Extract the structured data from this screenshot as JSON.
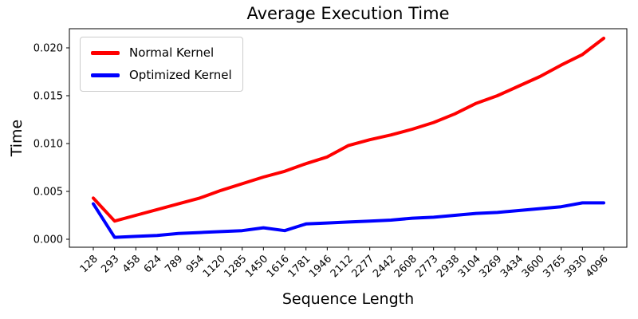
{
  "chart_data": {
    "type": "line",
    "title": "Average Execution Time",
    "xlabel": "Sequence Length",
    "ylabel": "Time",
    "legend_position": "upper left",
    "grid": false,
    "ylim": [
      -0.0009,
      0.0222
    ],
    "yticks": [
      {
        "label": "0.000",
        "value": 0.0
      },
      {
        "label": "0.005",
        "value": 0.005
      },
      {
        "label": "0.010",
        "value": 0.01
      },
      {
        "label": "0.015",
        "value": 0.015
      },
      {
        "label": "0.020",
        "value": 0.02
      }
    ],
    "categories": [
      "128",
      "293",
      "458",
      "624",
      "789",
      "954",
      "1120",
      "1285",
      "1450",
      "1616",
      "1781",
      "1946",
      "2112",
      "2277",
      "2442",
      "2608",
      "2773",
      "2938",
      "3104",
      "3269",
      "3434",
      "3600",
      "3765",
      "3930",
      "4096"
    ],
    "series": [
      {
        "name": "Normal Kernel",
        "color": "#ff0000",
        "values": [
          0.0043,
          0.0019,
          0.0025,
          0.0031,
          0.0037,
          0.0043,
          0.0051,
          0.0058,
          0.0065,
          0.0071,
          0.0079,
          0.0086,
          0.0098,
          0.0104,
          0.0109,
          0.0115,
          0.0122,
          0.0131,
          0.0142,
          0.015,
          0.016,
          0.017,
          0.0182,
          0.0193,
          0.021
        ]
      },
      {
        "name": "Optimized Kernel",
        "color": "#0000ff",
        "values": [
          0.0037,
          0.0002,
          0.0003,
          0.0004,
          0.0006,
          0.0007,
          0.0008,
          0.0009,
          0.0012,
          0.0009,
          0.0016,
          0.0017,
          0.0018,
          0.0019,
          0.002,
          0.0022,
          0.0023,
          0.0025,
          0.0027,
          0.0028,
          0.003,
          0.0032,
          0.0034,
          0.0038,
          0.0038
        ]
      }
    ]
  }
}
